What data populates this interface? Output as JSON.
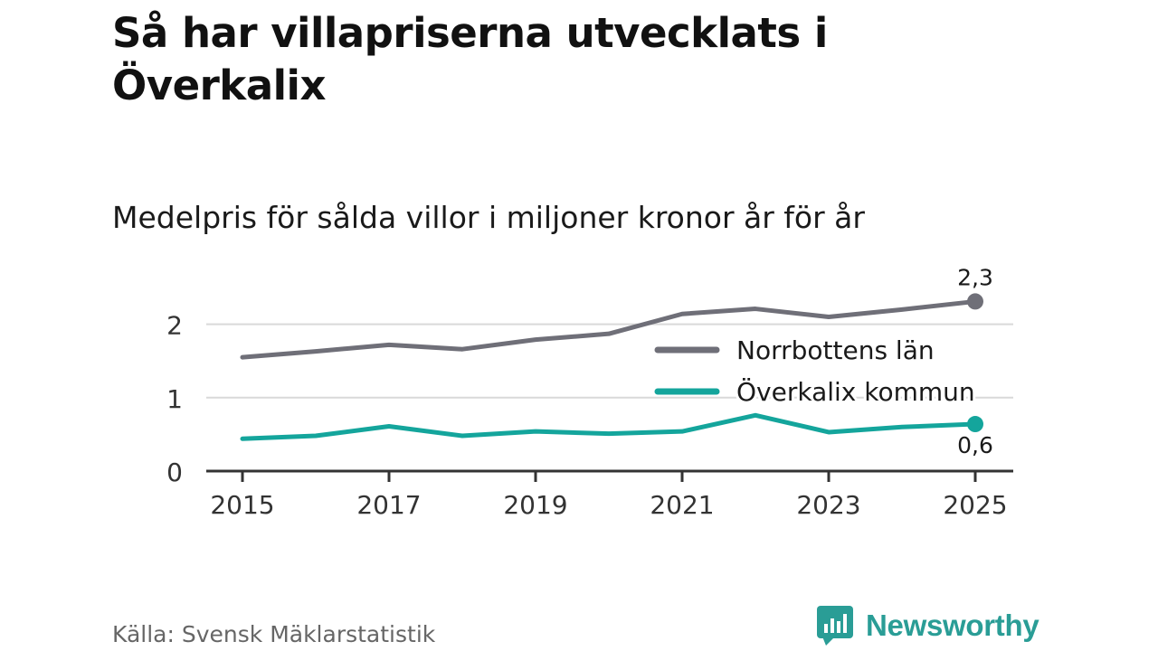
{
  "title": "Så har villapriserna utvecklats i Överkalix",
  "subtitle": "Medelpris för sålda villor i miljoner kronor år för år",
  "source": "Källa: Svensk Mäklarstatistik",
  "brand": "Newsworthy",
  "colors": {
    "region": "#6f6f78",
    "municipality": "#14a59c",
    "grid": "#d9d9d9",
    "axis": "#333333"
  },
  "chart_data": {
    "type": "line",
    "title": "Så har villapriserna utvecklats i Överkalix",
    "subtitle": "Medelpris för sålda villor i miljoner kronor år för år",
    "ylabel": "",
    "xlabel": "",
    "x": [
      2015,
      2016,
      2017,
      2018,
      2019,
      2020,
      2021,
      2022,
      2023,
      2024,
      2025
    ],
    "x_ticks": [
      "2015",
      "2017",
      "2019",
      "2021",
      "2023",
      "2025"
    ],
    "y_ticks": [
      "0",
      "1",
      "2"
    ],
    "ylim": [
      0,
      2.4
    ],
    "grid": true,
    "legend_position": "middle-right",
    "series": [
      {
        "name": "Norrbottens län",
        "key": "region",
        "values": [
          1.55,
          1.63,
          1.72,
          1.66,
          1.79,
          1.87,
          2.14,
          2.21,
          2.1,
          2.2,
          2.31
        ],
        "end_label": "2,3"
      },
      {
        "name": "Överkalix kommun",
        "key": "municipality",
        "values": [
          0.44,
          0.48,
          0.61,
          0.48,
          0.54,
          0.51,
          0.54,
          0.76,
          0.53,
          0.6,
          0.64
        ],
        "end_label": "0,6"
      }
    ]
  }
}
